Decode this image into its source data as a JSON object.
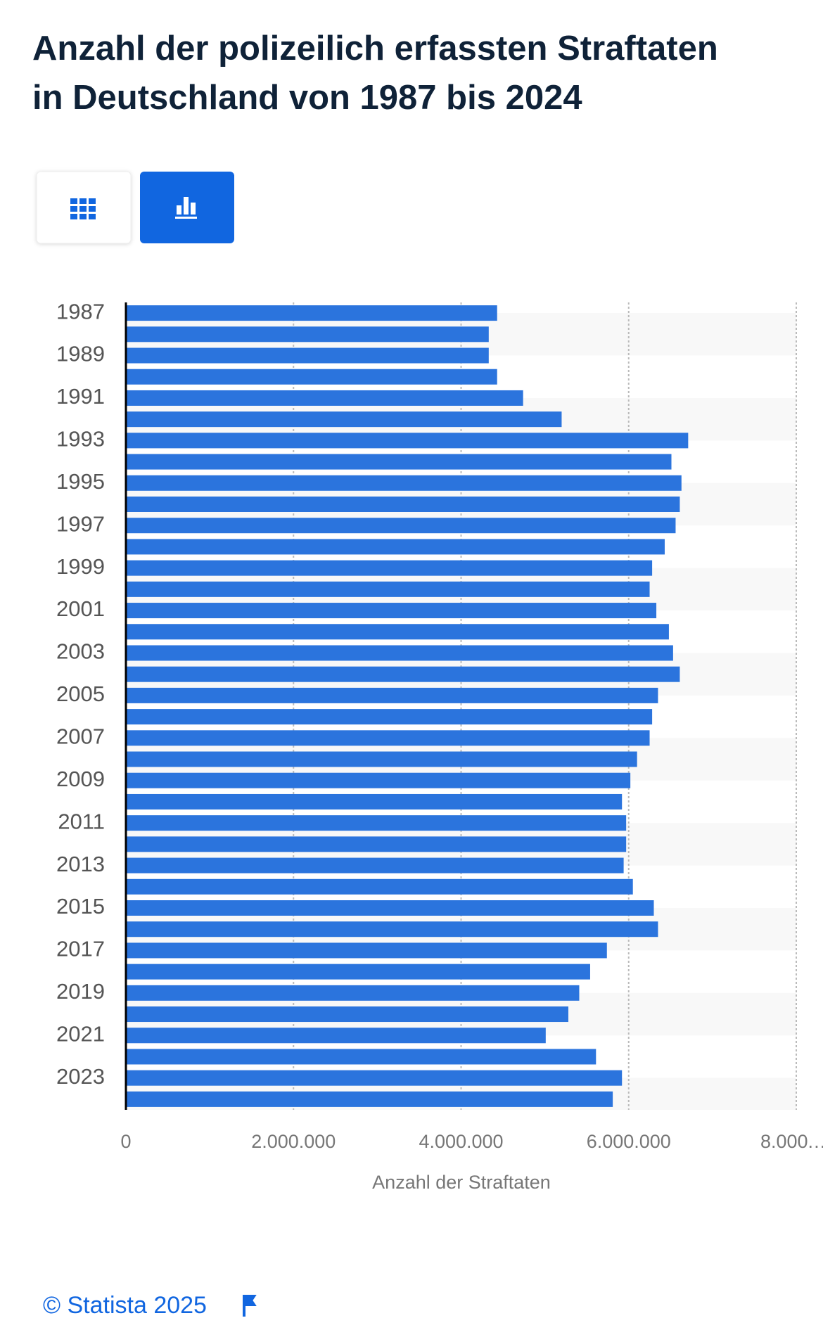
{
  "chart_data": {
    "type": "hbar",
    "title": "Anzahl der polizeilich erfassten Straftaten in Deutschland von 1987 bis 2024",
    "x_label": "Anzahl der Straftaten",
    "source": "© Statista 2025",
    "color": "#2b74dd",
    "categories": [
      "1987",
      null,
      "1989",
      null,
      "1991",
      null,
      "1993",
      null,
      "1995",
      null,
      "1997",
      null,
      "1999",
      null,
      "2001",
      null,
      "2003",
      null,
      "2005",
      null,
      "2007",
      null,
      "2009",
      null,
      "2011",
      null,
      "2013",
      null,
      "2015",
      null,
      "2017",
      null,
      "2019",
      null,
      "2021",
      null,
      "2023",
      null
    ],
    "values": [
      4430000,
      4330000,
      4330000,
      4430000,
      4740000,
      5200000,
      6710000,
      6510000,
      6630000,
      6610000,
      6560000,
      6430000,
      6280000,
      6250000,
      6330000,
      6480000,
      6530000,
      6610000,
      6350000,
      6280000,
      6250000,
      6100000,
      6020000,
      5920000,
      5970000,
      5970000,
      5940000,
      6050000,
      6300000,
      6350000,
      5740000,
      5540000,
      5410000,
      5280000,
      5010000,
      5610000,
      5920000,
      5810000
    ],
    "xlim": [
      0,
      8000000
    ],
    "xticks": [
      0,
      {
        "value": 2000000,
        "label": "2.000.000"
      },
      {
        "value": 4000000,
        "label": "4.000.000"
      },
      {
        "value": 6000000,
        "label": "6.000.000"
      },
      {
        "value": 8000000,
        "label": "8.000.…"
      }
    ],
    "grid": true
  }
}
